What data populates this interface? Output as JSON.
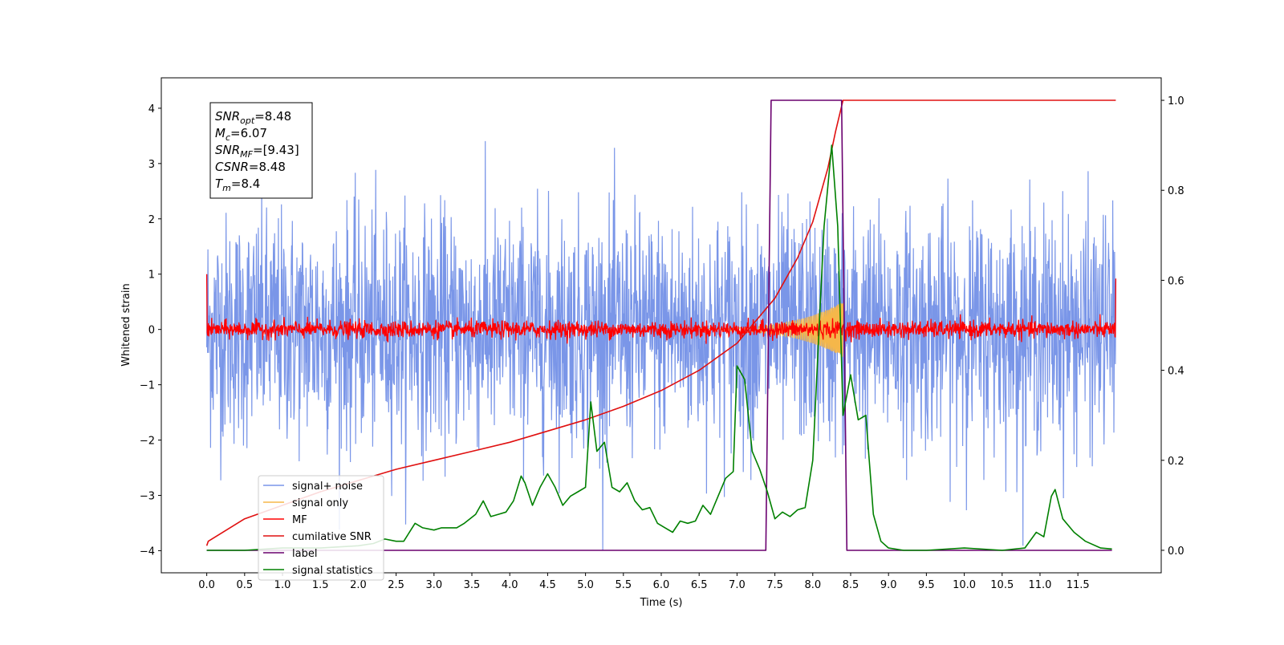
{
  "chart_data": {
    "type": "line",
    "xlabel": "Time (s)",
    "ylabel_left": "Whitened strain",
    "ylabel_right": "",
    "xlim": [
      -0.6,
      12.6
    ],
    "ylim_left": [
      -4.4,
      4.55
    ],
    "ylim_right": [
      -0.05,
      1.05
    ],
    "x_ticks": [
      "0.0",
      "0.5",
      "1.0",
      "1.5",
      "2.0",
      "2.5",
      "3.0",
      "3.5",
      "4.0",
      "4.5",
      "5.0",
      "5.5",
      "6.0",
      "6.5",
      "7.0",
      "7.5",
      "8.0",
      "8.5",
      "9.0",
      "9.5",
      "10.0",
      "10.5",
      "11.0",
      "11.5"
    ],
    "y_ticks_left": [
      "4",
      "3",
      "2",
      "1",
      "0",
      "−1",
      "−2",
      "−3",
      "−4"
    ],
    "y_ticks_right": [
      "1.0",
      "0.8",
      "0.6",
      "0.4",
      "0.2",
      "0.0"
    ],
    "grid": false,
    "legend_placement": "lower-left",
    "colors": {
      "signal_noise": "#7a96e8",
      "signal_only": "#f5b74a",
      "mf": "#ff0000",
      "cumulative_snr": "#e01010",
      "label": "#6a006f",
      "signal_statistics": "#008000"
    },
    "annotation": [
      {
        "base": "SNR",
        "sub": "opt",
        "value": "=8.48"
      },
      {
        "base": "M",
        "sub": "c",
        "value": "=6.07"
      },
      {
        "base": "SNR",
        "sub": "MF",
        "value": "=[9.43]"
      },
      {
        "base": "CSNR",
        "sub": "",
        "value": "=8.48"
      },
      {
        "base": "T",
        "sub": "m",
        "value": "=8.4"
      }
    ],
    "series": [
      {
        "name": "signal+ noise",
        "axis": "left",
        "kind": "noise",
        "x_range": [
          0.0,
          12.0
        ],
        "mean": 0.0,
        "typical_envelope": 2.6,
        "max_peak": 4.2,
        "min_peak": -4.0
      },
      {
        "name": "signal only",
        "axis": "left",
        "kind": "chirp",
        "x_range": [
          6.5,
          8.4
        ],
        "amplitude_start": 0.02,
        "amplitude_end": 0.5
      },
      {
        "name": "MF",
        "axis": "left",
        "kind": "noise",
        "x_range": [
          0.0,
          12.0
        ],
        "mean": 0.0,
        "typical_envelope": 0.2,
        "start_value": 1.0,
        "end_value": 0.92
      },
      {
        "name": "cumilative SNR",
        "axis": "right",
        "x": [
          0.0,
          0.02,
          0.5,
          1.0,
          1.5,
          2.0,
          2.5,
          3.0,
          3.5,
          4.0,
          4.5,
          5.0,
          5.5,
          6.0,
          6.5,
          7.0,
          7.5,
          7.8,
          8.0,
          8.2,
          8.3,
          8.4,
          8.401,
          12.0
        ],
        "y": [
          0.01,
          0.02,
          0.07,
          0.1,
          0.13,
          0.155,
          0.18,
          0.2,
          0.22,
          0.24,
          0.265,
          0.29,
          0.32,
          0.355,
          0.4,
          0.46,
          0.56,
          0.65,
          0.73,
          0.85,
          0.93,
          1.0,
          1.0,
          1.0
        ]
      },
      {
        "name": "label",
        "axis": "right",
        "x": [
          0.0,
          7.38,
          7.45,
          8.38,
          8.45,
          11.95
        ],
        "y": [
          0.0,
          0.0,
          1.0,
          1.0,
          0.0,
          0.0
        ]
      },
      {
        "name": "signal statistics",
        "axis": "right",
        "x": [
          0.0,
          0.5,
          1.0,
          1.5,
          2.0,
          2.2,
          2.35,
          2.5,
          2.6,
          2.75,
          2.85,
          3.0,
          3.1,
          3.3,
          3.4,
          3.55,
          3.65,
          3.75,
          3.85,
          3.95,
          4.05,
          4.15,
          4.2,
          4.3,
          4.4,
          4.5,
          4.6,
          4.7,
          4.8,
          4.9,
          5.0,
          5.07,
          5.15,
          5.25,
          5.35,
          5.45,
          5.55,
          5.65,
          5.75,
          5.85,
          5.95,
          6.05,
          6.15,
          6.25,
          6.35,
          6.45,
          6.55,
          6.65,
          6.75,
          6.85,
          6.95,
          7.0,
          7.1,
          7.2,
          7.3,
          7.4,
          7.5,
          7.6,
          7.7,
          7.8,
          7.9,
          8.0,
          8.1,
          8.15,
          8.25,
          8.33,
          8.4,
          8.5,
          8.6,
          8.7,
          8.8,
          8.9,
          9.0,
          9.2,
          9.5,
          10.0,
          10.5,
          10.8,
          10.95,
          11.05,
          11.15,
          11.2,
          11.3,
          11.45,
          11.6,
          11.8,
          11.95
        ],
        "y": [
          0.0,
          0.0,
          0.005,
          0.005,
          0.01,
          0.015,
          0.025,
          0.02,
          0.02,
          0.06,
          0.05,
          0.045,
          0.05,
          0.05,
          0.06,
          0.08,
          0.11,
          0.075,
          0.08,
          0.085,
          0.11,
          0.165,
          0.15,
          0.1,
          0.14,
          0.17,
          0.14,
          0.1,
          0.12,
          0.13,
          0.14,
          0.33,
          0.22,
          0.24,
          0.14,
          0.13,
          0.15,
          0.11,
          0.09,
          0.095,
          0.06,
          0.05,
          0.04,
          0.065,
          0.06,
          0.065,
          0.1,
          0.08,
          0.12,
          0.16,
          0.175,
          0.41,
          0.38,
          0.22,
          0.18,
          0.13,
          0.07,
          0.085,
          0.075,
          0.09,
          0.095,
          0.2,
          0.55,
          0.72,
          0.9,
          0.72,
          0.3,
          0.39,
          0.29,
          0.3,
          0.08,
          0.02,
          0.005,
          0.0,
          0.0,
          0.005,
          0.0,
          0.005,
          0.04,
          0.03,
          0.12,
          0.135,
          0.07,
          0.04,
          0.02,
          0.005,
          0.003
        ]
      }
    ]
  }
}
